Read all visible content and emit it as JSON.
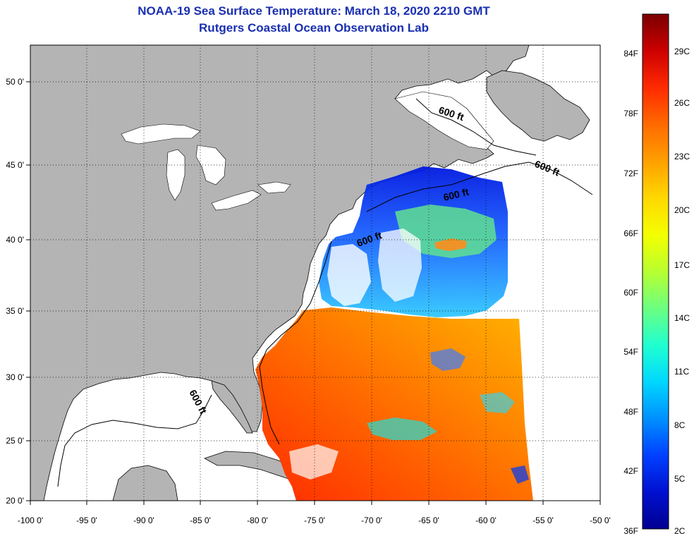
{
  "title": "NOAA-19 Sea Surface Temperature:  March 18, 2020 2210 GMT",
  "subtitle": "Rutgers Coastal Ocean Observation Lab",
  "map": {
    "lon_ticks": [
      "-100 0'",
      "-95 0'",
      "-90 0'",
      "-85 0'",
      "-80 0'",
      "-75 0'",
      "-70 0'",
      "-65 0'",
      "-60 0'",
      "-55 0'",
      "-50 0'"
    ],
    "lat_ticks": [
      "50 0'",
      "45 0'",
      "40 0'",
      "35 0'",
      "30 0'",
      "25 0'",
      "20 0'"
    ],
    "contour_labels": [
      "600 ft",
      "600 ft",
      "600 ft",
      "600 ft",
      "600 ft"
    ],
    "land_color": "#b4b4b4",
    "shelf_color": "#ffffff"
  },
  "colorbar": {
    "fahrenheit_labels": [
      "84F",
      "78F",
      "72F",
      "66F",
      "60F",
      "54F",
      "48F",
      "42F",
      "36F"
    ],
    "celsius_labels": [
      "29C",
      "26C",
      "23C",
      "20C",
      "17C",
      "14C",
      "11C",
      "8C",
      "5C",
      "2C"
    ],
    "colors": [
      "#7a0000",
      "#cc0000",
      "#ff2a00",
      "#ff6a00",
      "#ffa000",
      "#ffd800",
      "#f4ff00",
      "#b8ff30",
      "#6cff80",
      "#20ffd0",
      "#00d8ff",
      "#0090ff",
      "#0040ff",
      "#0010d0",
      "#000090"
    ]
  }
}
